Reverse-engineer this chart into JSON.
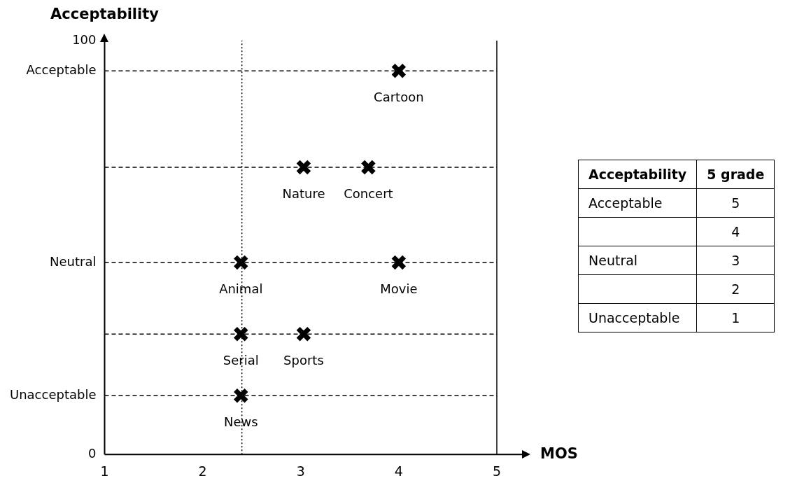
{
  "chart_data": [
    {
      "type": "scatter",
      "xlabel": "MOS",
      "ylabel": "Acceptability",
      "xlim": [
        1,
        5
      ],
      "xticks": [
        1,
        2,
        3,
        4,
        5
      ],
      "ylim": [
        0,
        100
      ],
      "yticks": [
        0,
        {
          "value": 14.2,
          "label": "Unacceptable"
        },
        {
          "value": 46.4,
          "label": "Neutral"
        },
        {
          "value": 92.7,
          "label": "Acceptable"
        },
        100
      ],
      "series": [
        {
          "color": "#000000",
          "x": [
            4.0,
            3.03,
            3.69,
            2.39,
            4.0,
            2.39,
            3.03,
            2.39
          ],
          "values": [
            92.7,
            69.4,
            69.4,
            46.4,
            46.4,
            29.1,
            29.1,
            14.2
          ]
        }
      ],
      "marker": "cross",
      "grid": false,
      "legend": false,
      "ref_lines": [
        {
          "axis": "y",
          "value": 92.7,
          "line_style": "dashed"
        },
        {
          "axis": "y",
          "value": 69.4,
          "line_style": "dashed"
        },
        {
          "axis": "y",
          "value": 46.4,
          "line_style": "dashed"
        },
        {
          "axis": "y",
          "value": 29.1,
          "line_style": "dashed"
        },
        {
          "axis": "y",
          "value": 14.2,
          "line_style": "dashed"
        },
        {
          "axis": "x",
          "value": 2.4,
          "line_style": "dotted"
        },
        {
          "axis": "x",
          "value": 5,
          "line_style": "solid"
        }
      ],
      "annotations": [
        {
          "text": "Cartoon",
          "x": 4.0,
          "y": 92.7
        },
        {
          "text": "Nature",
          "x": 3.03,
          "y": 69.4
        },
        {
          "text": "Concert",
          "x": 3.69,
          "y": 69.4
        },
        {
          "text": "Animal",
          "x": 2.39,
          "y": 46.4
        },
        {
          "text": "Movie",
          "x": 4.0,
          "y": 46.4
        },
        {
          "text": "Serial",
          "x": 2.39,
          "y": 29.1
        },
        {
          "text": "Sports",
          "x": 3.03,
          "y": 29.1
        },
        {
          "text": "News",
          "x": 2.39,
          "y": 14.2
        }
      ]
    },
    {
      "type": "heatmap",
      "ylabel": "Acceptability",
      "categories": [
        "5 grade"
      ],
      "y_categories": [
        "Acceptable",
        null,
        "Neutral",
        null,
        "Unacceptable"
      ],
      "cells": [
        [
          5
        ],
        [
          4
        ],
        [
          3
        ],
        [
          2
        ],
        [
          1
        ]
      ],
      "data_labels": true
    }
  ]
}
